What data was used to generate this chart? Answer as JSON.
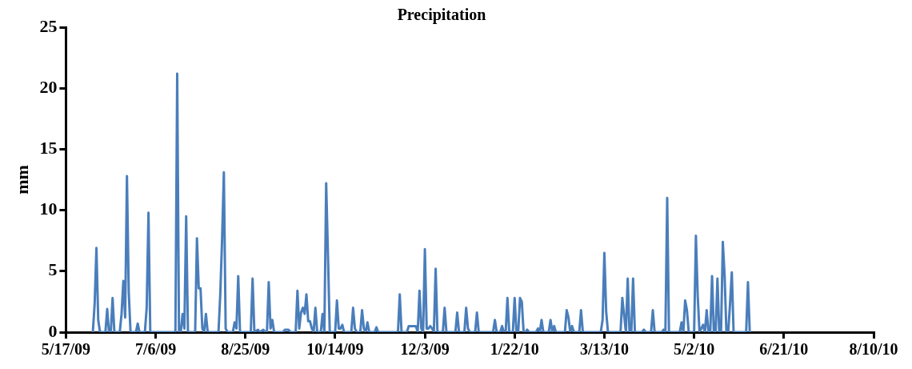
{
  "chart_data": {
    "type": "line",
    "title": "Precipitation",
    "ylabel": "mm",
    "color": "#4a7ebb",
    "marker": "none",
    "grid": false,
    "legend": false,
    "x": [
      "2009-06-01",
      "2009-06-02",
      "2009-06-03",
      "2009-06-04",
      "2009-06-05",
      "2009-06-08",
      "2009-06-09",
      "2009-06-10",
      "2009-06-11",
      "2009-06-12",
      "2009-06-13",
      "2009-06-16",
      "2009-06-17",
      "2009-06-18",
      "2009-06-19",
      "2009-06-20",
      "2009-06-21",
      "2009-06-22",
      "2009-06-25",
      "2009-06-26",
      "2009-06-27",
      "2009-06-30",
      "2009-07-01",
      "2009-07-02",
      "2009-07-03",
      "2009-07-17",
      "2009-07-18",
      "2009-07-19",
      "2009-07-20",
      "2009-07-21",
      "2009-07-22",
      "2009-07-23",
      "2009-07-24",
      "2009-07-28",
      "2009-07-29",
      "2009-07-30",
      "2009-07-31",
      "2009-08-01",
      "2009-08-02",
      "2009-08-03",
      "2009-08-04",
      "2009-08-10",
      "2009-08-11",
      "2009-08-12",
      "2009-08-13",
      "2009-08-14",
      "2009-08-15",
      "2009-08-18",
      "2009-08-19",
      "2009-08-20",
      "2009-08-21",
      "2009-08-22",
      "2009-08-28",
      "2009-08-29",
      "2009-08-30",
      "2009-09-01",
      "2009-09-02",
      "2009-09-04",
      "2009-09-05",
      "2009-09-06",
      "2009-09-07",
      "2009-09-08",
      "2009-09-09",
      "2009-09-10",
      "2009-09-15",
      "2009-09-16",
      "2009-09-17",
      "2009-09-18",
      "2009-09-19",
      "2009-09-22",
      "2009-09-23",
      "2009-09-24",
      "2009-09-25",
      "2009-09-26",
      "2009-09-27",
      "2009-09-28",
      "2009-09-29",
      "2009-09-30",
      "2009-10-01",
      "2009-10-02",
      "2009-10-03",
      "2009-10-04",
      "2009-10-06",
      "2009-10-07",
      "2009-10-08",
      "2009-10-09",
      "2009-10-10",
      "2009-10-11",
      "2009-10-14",
      "2009-10-15",
      "2009-10-16",
      "2009-10-17",
      "2009-10-18",
      "2009-10-19",
      "2009-10-23",
      "2009-10-24",
      "2009-10-25",
      "2009-10-26",
      "2009-10-28",
      "2009-10-29",
      "2009-10-30",
      "2009-10-31",
      "2009-11-01",
      "2009-11-02",
      "2009-11-05",
      "2009-11-06",
      "2009-11-07",
      "2009-11-18",
      "2009-11-19",
      "2009-11-20",
      "2009-11-23",
      "2009-11-24",
      "2009-11-25",
      "2009-11-26",
      "2009-11-27",
      "2009-11-28",
      "2009-11-29",
      "2009-11-30",
      "2009-12-01",
      "2009-12-02",
      "2009-12-03",
      "2009-12-04",
      "2009-12-05",
      "2009-12-06",
      "2009-12-07",
      "2009-12-08",
      "2009-12-09",
      "2009-12-10",
      "2009-12-13",
      "2009-12-14",
      "2009-12-15",
      "2009-12-20",
      "2009-12-21",
      "2009-12-22",
      "2009-12-25",
      "2009-12-26",
      "2009-12-27",
      "2009-12-28",
      "2009-12-31",
      "2010-01-01",
      "2010-01-02",
      "2010-01-10",
      "2010-01-11",
      "2010-01-12",
      "2010-01-14",
      "2010-01-15",
      "2010-01-16",
      "2010-01-17",
      "2010-01-18",
      "2010-01-19",
      "2010-01-21",
      "2010-01-22",
      "2010-01-23",
      "2010-01-24",
      "2010-01-25",
      "2010-01-26",
      "2010-01-27",
      "2010-01-28",
      "2010-01-29",
      "2010-01-30",
      "2010-02-03",
      "2010-02-04",
      "2010-02-05",
      "2010-02-06",
      "2010-02-07",
      "2010-02-10",
      "2010-02-11",
      "2010-02-12",
      "2010-02-13",
      "2010-02-14",
      "2010-02-19",
      "2010-02-20",
      "2010-02-21",
      "2010-02-22",
      "2010-02-23",
      "2010-02-24",
      "2010-02-27",
      "2010-02-28",
      "2010-03-01",
      "2010-03-11",
      "2010-03-12",
      "2010-03-13",
      "2010-03-14",
      "2010-03-15",
      "2010-03-22",
      "2010-03-23",
      "2010-03-24",
      "2010-03-25",
      "2010-03-26",
      "2010-03-27",
      "2010-03-28",
      "2010-03-29",
      "2010-03-30",
      "2010-04-03",
      "2010-04-04",
      "2010-04-05",
      "2010-04-08",
      "2010-04-09",
      "2010-04-10",
      "2010-04-14",
      "2010-04-15",
      "2010-04-16",
      "2010-04-17",
      "2010-04-18",
      "2010-04-24",
      "2010-04-25",
      "2010-04-26",
      "2010-04-27",
      "2010-04-28",
      "2010-04-29",
      "2010-05-02",
      "2010-05-03",
      "2010-05-04",
      "2010-05-05",
      "2010-05-07",
      "2010-05-08",
      "2010-05-09",
      "2010-05-10",
      "2010-05-11",
      "2010-05-12",
      "2010-05-13",
      "2010-05-14",
      "2010-05-15",
      "2010-05-16",
      "2010-05-17",
      "2010-05-18",
      "2010-05-19",
      "2010-05-20",
      "2010-05-21",
      "2010-05-22",
      "2010-05-23",
      "2010-05-24",
      "2010-05-31",
      "2010-06-01",
      "2010-06-02"
    ],
    "values": [
      0,
      2.3,
      6.9,
      1.0,
      0,
      0,
      1.9,
      0,
      0,
      2.8,
      0,
      0,
      1.5,
      4.2,
      1.2,
      12.8,
      3.3,
      0,
      0,
      0.7,
      0,
      0,
      2.0,
      9.8,
      0,
      0,
      21.2,
      0,
      0,
      1.5,
      0.3,
      9.5,
      0,
      0,
      7.7,
      3.6,
      3.6,
      0.3,
      0,
      1.5,
      0,
      0,
      3.1,
      7.6,
      13.1,
      0.3,
      0,
      0,
      0.8,
      0.3,
      4.6,
      0,
      0,
      4.4,
      0,
      0.2,
      0,
      0.2,
      0,
      0,
      4.1,
      0.3,
      1.0,
      0,
      0,
      0.2,
      0.2,
      0.2,
      0,
      0,
      3.4,
      0.3,
      1.6,
      2.0,
      1.5,
      3.1,
      0.9,
      0.9,
      0.3,
      0,
      2.0,
      0,
      0,
      1.5,
      0,
      12.2,
      6.3,
      0,
      0,
      2.6,
      0.3,
      0.3,
      0.6,
      0,
      0,
      2.0,
      0.3,
      0,
      0,
      1.8,
      0.3,
      0,
      0.8,
      0,
      0,
      0.4,
      0,
      0,
      3.1,
      0,
      0,
      0.5,
      0.5,
      0.5,
      0.5,
      0.5,
      0,
      3.4,
      0.3,
      0,
      6.8,
      0.3,
      0.3,
      0.5,
      0.3,
      0,
      5.2,
      0,
      0,
      2.0,
      0,
      0,
      1.6,
      0,
      0,
      2.0,
      0.3,
      0,
      0,
      1.6,
      0,
      0,
      1.0,
      0,
      0,
      0.5,
      0,
      0,
      2.8,
      0,
      0,
      2.8,
      0,
      0,
      2.8,
      2.5,
      0,
      0,
      0.2,
      0,
      0,
      0.3,
      0,
      1.0,
      0,
      0,
      1.0,
      0,
      0.5,
      0,
      0,
      1.8,
      1.2,
      0,
      0.5,
      0,
      0,
      1.8,
      0,
      0,
      1.0,
      6.5,
      1.7,
      0,
      0,
      2.8,
      1.4,
      0,
      4.4,
      0,
      0,
      4.4,
      0,
      0,
      0.2,
      0,
      0,
      1.8,
      0,
      0,
      0.2,
      0,
      11.0,
      0,
      0,
      0.8,
      0,
      2.6,
      1.8,
      0,
      0,
      7.9,
      3.0,
      0,
      0.6,
      0,
      1.8,
      0,
      0,
      4.6,
      0,
      0,
      4.4,
      0,
      0,
      7.4,
      4.6,
      0,
      0,
      2.3,
      4.9,
      0,
      0,
      4.1,
      0
    ],
    "xlim": [
      "2009-05-17",
      "2010-08-10"
    ],
    "xticks": [
      {
        "value": "2009-05-17",
        "label": "5/17/09"
      },
      {
        "value": "2009-07-06",
        "label": "7/6/09"
      },
      {
        "value": "2009-08-25",
        "label": "8/25/09"
      },
      {
        "value": "2009-10-14",
        "label": "10/14/09"
      },
      {
        "value": "2009-12-03",
        "label": "12/3/09"
      },
      {
        "value": "2010-01-22",
        "label": "1/22/10"
      },
      {
        "value": "2010-03-13",
        "label": "3/13/10"
      },
      {
        "value": "2010-05-02",
        "label": "5/2/10"
      },
      {
        "value": "2010-06-21",
        "label": "6/21/10"
      },
      {
        "value": "2010-08-10",
        "label": "8/10/10"
      }
    ],
    "ylim": [
      0,
      25
    ],
    "yticks": [
      0,
      5,
      10,
      15,
      20,
      25
    ]
  }
}
